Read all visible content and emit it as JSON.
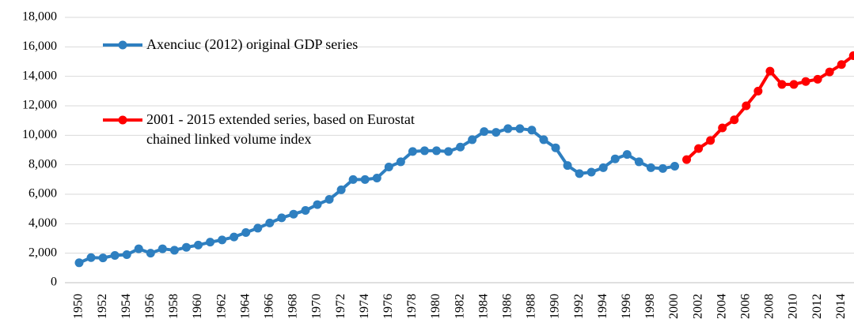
{
  "chart_data": {
    "type": "line",
    "categories": [
      "1950",
      null,
      "1952",
      null,
      "1954",
      null,
      "1956",
      null,
      "1958",
      null,
      "1960",
      null,
      "1962",
      null,
      "1964",
      null,
      "1966",
      null,
      "1968",
      null,
      "1970",
      null,
      "1972",
      null,
      "1974",
      null,
      "1976",
      null,
      "1978",
      null,
      "1980",
      null,
      "1982",
      null,
      "1984",
      null,
      "1986",
      null,
      "1988",
      null,
      "1990",
      null,
      "1992",
      null,
      "1994",
      null,
      "1996",
      null,
      "1998",
      null,
      "2000",
      null,
      "2002",
      null,
      "2004",
      null,
      "2006",
      null,
      "2008",
      null,
      "2010",
      null,
      "2012",
      null,
      "2014",
      null
    ],
    "series": [
      {
        "name": "Axenciuc (2012) original GDP series",
        "color": "#2e7fc0",
        "values": [
          1350,
          1700,
          1680,
          1850,
          1900,
          2300,
          2000,
          2300,
          2200,
          2400,
          2550,
          2750,
          2900,
          3100,
          3400,
          3700,
          4050,
          4400,
          4650,
          4900,
          5300,
          5650,
          6300,
          7000,
          7000,
          7100,
          7850,
          8200,
          8900,
          8950,
          8950,
          8900,
          9200,
          9700,
          10250,
          10200,
          10450,
          10450,
          10350,
          9700,
          9150,
          7950,
          7400,
          7500,
          7800,
          8400,
          8700,
          8200,
          7800,
          7750,
          7900,
          null,
          null,
          null,
          null,
          null,
          null,
          null,
          null,
          null,
          null,
          null,
          null,
          null,
          null,
          null
        ]
      },
      {
        "name": "2001 - 2015 extended series, based on Eurostat chained linked volume index",
        "color": "#ff0000",
        "values": [
          null,
          null,
          null,
          null,
          null,
          null,
          null,
          null,
          null,
          null,
          null,
          null,
          null,
          null,
          null,
          null,
          null,
          null,
          null,
          null,
          null,
          null,
          null,
          null,
          null,
          null,
          null,
          null,
          null,
          null,
          null,
          null,
          null,
          null,
          null,
          null,
          null,
          null,
          null,
          null,
          null,
          null,
          null,
          null,
          null,
          null,
          null,
          null,
          null,
          null,
          null,
          8350,
          9100,
          9650,
          10500,
          11050,
          12000,
          13000,
          14350,
          13450,
          13450,
          13650,
          13800,
          14300,
          14800,
          15400
        ]
      }
    ],
    "ylim": [
      0,
      18000
    ],
    "yticks": [
      0,
      {
        "value": 2000,
        "label": "2,000"
      },
      {
        "value": 4000,
        "label": "4,000"
      },
      {
        "value": 6000,
        "label": "6,000"
      },
      {
        "value": 8000,
        "label": "8,000"
      },
      {
        "value": 10000,
        "label": "10,000"
      },
      {
        "value": 12000,
        "label": "12,000"
      },
      {
        "value": 14000,
        "label": "14,000"
      },
      {
        "value": 16000,
        "label": "16,000"
      },
      {
        "value": 18000,
        "label": "18,000"
      }
    ],
    "grid": true,
    "legend": "upper left"
  }
}
